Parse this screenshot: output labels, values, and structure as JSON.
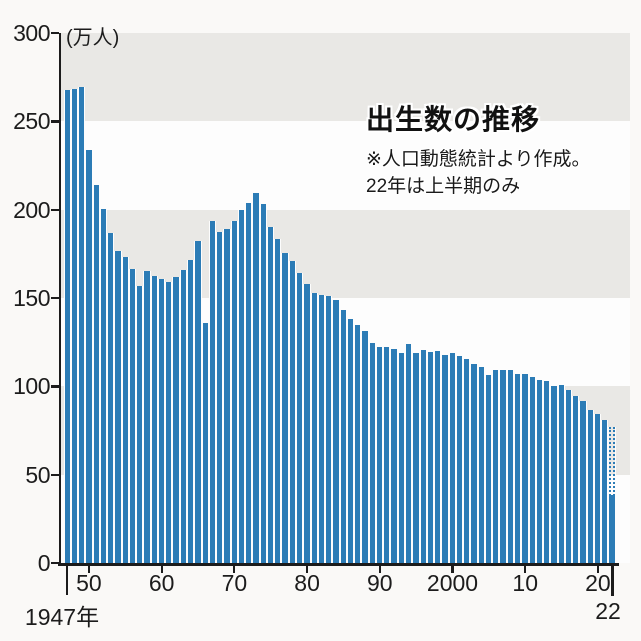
{
  "header": {
    "title": "出生数の推移",
    "note_line1": "※人口動態統計より作成。",
    "note_line2": "22年は上半期のみ"
  },
  "y_axis": {
    "unit_label": "(万人)",
    "ticks": [
      300,
      250,
      200,
      150,
      100,
      50,
      0
    ],
    "max": 300
  },
  "x_axis": {
    "first_label": "1947年",
    "last_label": "22",
    "decade_ticks": [
      {
        "year": 1950,
        "label": "50"
      },
      {
        "year": 1960,
        "label": "60"
      },
      {
        "year": 1970,
        "label": "70"
      },
      {
        "year": 1980,
        "label": "80"
      },
      {
        "year": 1990,
        "label": "90"
      },
      {
        "year": 2000,
        "label": "2000"
      },
      {
        "year": 2010,
        "label": "10"
      },
      {
        "year": 2020,
        "label": "20"
      }
    ]
  },
  "colors": {
    "bar": "#2c7cb6",
    "band": "#e9e8e5",
    "plot_bg": "#fdfdfd",
    "page_bg": "#faf9f7",
    "axis": "#1c1c1c"
  },
  "chart_data": {
    "type": "bar",
    "title": "出生数の推移",
    "unit": "万人",
    "ylabel": "(万人)",
    "ylim": [
      0,
      300
    ],
    "grid_bands_gray": [
      [
        250,
        300
      ],
      [
        150,
        200
      ],
      [
        50,
        100
      ]
    ],
    "start_year": 1947,
    "years": [
      1947,
      1948,
      1949,
      1950,
      1951,
      1952,
      1953,
      1954,
      1955,
      1956,
      1957,
      1958,
      1959,
      1960,
      1961,
      1962,
      1963,
      1964,
      1965,
      1966,
      1967,
      1968,
      1969,
      1970,
      1971,
      1972,
      1973,
      1974,
      1975,
      1976,
      1977,
      1978,
      1979,
      1980,
      1981,
      1982,
      1983,
      1984,
      1985,
      1986,
      1987,
      1988,
      1989,
      1990,
      1991,
      1992,
      1993,
      1994,
      1995,
      1996,
      1997,
      1998,
      1999,
      2000,
      2001,
      2002,
      2003,
      2004,
      2005,
      2006,
      2007,
      2008,
      2009,
      2010,
      2011,
      2012,
      2013,
      2014,
      2015,
      2016,
      2017,
      2018,
      2019,
      2020,
      2021
    ],
    "values": [
      267.9,
      268.2,
      269.7,
      233.7,
      213.8,
      200.5,
      186.8,
      176.9,
      173.1,
      166.5,
      156.7,
      165.3,
      162.6,
      160.6,
      158.9,
      161.8,
      165.9,
      171.7,
      182.4,
      136.1,
      193.6,
      187.2,
      188.9,
      193.4,
      200.1,
      203.9,
      209.2,
      203.0,
      190.1,
      183.3,
      175.5,
      170.9,
      164.3,
      157.7,
      152.9,
      151.5,
      150.9,
      148.9,
      143.2,
      138.3,
      134.7,
      131.4,
      124.7,
      122.2,
      122.3,
      120.9,
      118.8,
      123.8,
      118.7,
      120.7,
      119.2,
      120.3,
      117.8,
      119.1,
      117.1,
      115.4,
      112.4,
      111.1,
      106.3,
      109.3,
      109.0,
      109.1,
      107.0,
      107.1,
      105.1,
      103.7,
      103.0,
      100.4,
      100.6,
      97.7,
      94.6,
      91.8,
      86.5,
      84.1,
      81.2
    ],
    "last_bar": {
      "year": 2022,
      "solid_value_first_half": 38.4,
      "dotted_outline_value": 77.0,
      "note": "22年は上半期のみ"
    }
  }
}
